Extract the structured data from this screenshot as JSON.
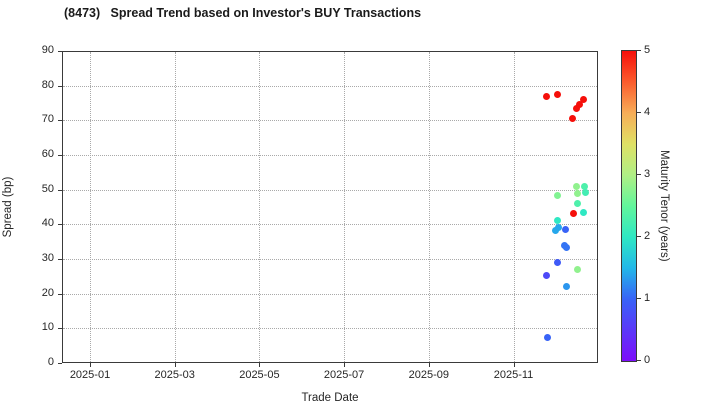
{
  "title": "(8473)   Spread Trend based on Investor's BUY Transactions",
  "chart_data": {
    "type": "scatter",
    "title": "(8473)   Spread Trend based on Investor's BUY Transactions",
    "xlabel": "Trade Date",
    "ylabel": "Spread (bp)",
    "ylim": [
      0,
      90
    ],
    "y_ticks": [
      0,
      10,
      20,
      30,
      40,
      50,
      60,
      70,
      80,
      90
    ],
    "x_ticks": [
      {
        "label": "2025-01",
        "month_index": 0
      },
      {
        "label": "2025-03",
        "month_index": 2
      },
      {
        "label": "2025-05",
        "month_index": 4
      },
      {
        "label": "2025-07",
        "month_index": 6
      },
      {
        "label": "2025-09",
        "month_index": 8
      },
      {
        "label": "2025-11",
        "month_index": 10
      }
    ],
    "grid": true,
    "colorbar": {
      "label": "Maturity Tenor (years)",
      "min": 0,
      "max": 5,
      "ticks": [
        0,
        1,
        2,
        3,
        4,
        5
      ],
      "stops": [
        [
          0.0,
          "#7d0dfa"
        ],
        [
          1.0,
          "#3863f7"
        ],
        [
          1.5,
          "#22b8e8"
        ],
        [
          2.0,
          "#2fe8c3"
        ],
        [
          2.5,
          "#62f59b"
        ],
        [
          3.0,
          "#b0ef85"
        ],
        [
          3.5,
          "#dfe165"
        ],
        [
          4.0,
          "#f7ad58"
        ],
        [
          4.5,
          "#fb5c2d"
        ],
        [
          5.0,
          "#f50f0a"
        ]
      ]
    },
    "points": [
      {
        "date": "2025-11-25",
        "spread": 77.0,
        "tenor": 5.0
      },
      {
        "date": "2025-12-02",
        "spread": 77.5,
        "tenor": 5.0
      },
      {
        "date": "2025-12-21",
        "spread": 76.0,
        "tenor": 5.0
      },
      {
        "date": "2025-12-18",
        "spread": 74.7,
        "tenor": 5.0
      },
      {
        "date": "2025-12-16",
        "spread": 73.3,
        "tenor": 5.0
      },
      {
        "date": "2025-12-13",
        "spread": 70.5,
        "tenor": 5.0
      },
      {
        "date": "2025-12-14",
        "spread": 43.0,
        "tenor": 5.0
      },
      {
        "date": "2025-12-16",
        "spread": 51.0,
        "tenor": 2.8
      },
      {
        "date": "2025-12-22",
        "spread": 51.0,
        "tenor": 2.3
      },
      {
        "date": "2025-12-17",
        "spread": 49.0,
        "tenor": 2.8
      },
      {
        "date": "2025-12-23",
        "spread": 49.3,
        "tenor": 2.2
      },
      {
        "date": "2025-12-02",
        "spread": 48.2,
        "tenor": 2.7
      },
      {
        "date": "2025-12-17",
        "spread": 46.1,
        "tenor": 2.3
      },
      {
        "date": "2025-12-21",
        "spread": 43.5,
        "tenor": 2.0
      },
      {
        "date": "2025-12-02",
        "spread": 41.0,
        "tenor": 2.0
      },
      {
        "date": "2025-12-03",
        "spread": 39.2,
        "tenor": 1.4
      },
      {
        "date": "2025-12-01",
        "spread": 38.1,
        "tenor": 1.4
      },
      {
        "date": "2025-12-08",
        "spread": 38.6,
        "tenor": 1.0
      },
      {
        "date": "2025-12-07",
        "spread": 34.0,
        "tenor": 1.1
      },
      {
        "date": "2025-12-09",
        "spread": 33.2,
        "tenor": 1.1
      },
      {
        "date": "2025-12-02",
        "spread": 29.1,
        "tenor": 0.9
      },
      {
        "date": "2025-12-17",
        "spread": 27.1,
        "tenor": 2.8
      },
      {
        "date": "2025-11-25",
        "spread": 25.1,
        "tenor": 0.7
      },
      {
        "date": "2025-12-09",
        "spread": 22.2,
        "tenor": 1.3
      },
      {
        "date": "2025-11-26",
        "spread": 7.5,
        "tenor": 1.0
      }
    ]
  }
}
